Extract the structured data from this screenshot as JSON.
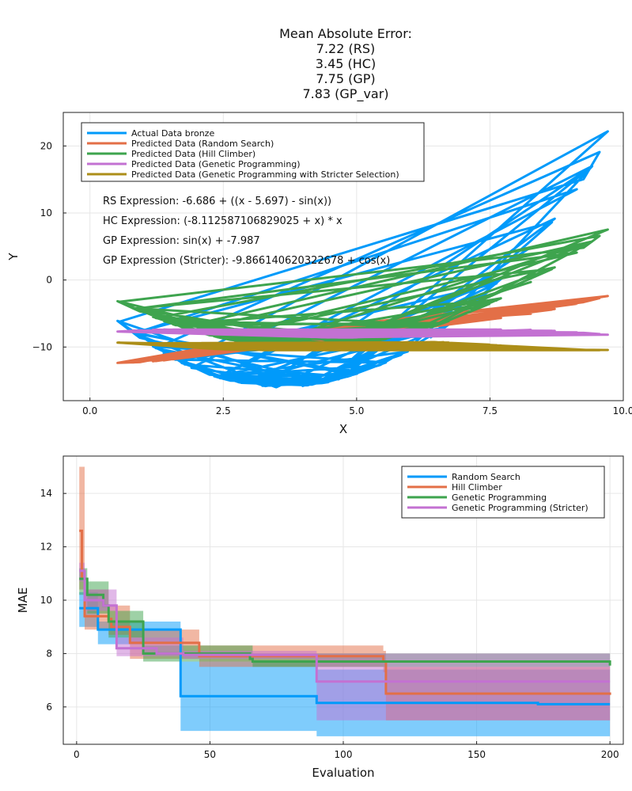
{
  "chart_data": [
    {
      "type": "line",
      "title_lines": [
        "Mean Absolute Error:",
        "7.22 (RS)",
        "3.45 (HC)",
        "7.75 (GP)",
        "7.83 (GP_var)"
      ],
      "xlabel": "X",
      "ylabel": "Y",
      "xlim": [
        -0.5,
        10.0
      ],
      "ylim": [
        -18,
        25
      ],
      "xticks": [
        0.0,
        2.5,
        5.0,
        7.5,
        10.0
      ],
      "xtick_labels": [
        "0.0",
        "2.5",
        "5.0",
        "7.5",
        "10.0"
      ],
      "yticks": [
        -10,
        0,
        10,
        20
      ],
      "ytick_labels": [
        "−10",
        "0",
        "10",
        "20"
      ],
      "grid": true,
      "legend_position": "top-left",
      "series": [
        {
          "name": "Actual Data bronze",
          "color": "#009AFA"
        },
        {
          "name": "Predicted Data (Random Search)",
          "color": "#E36F47"
        },
        {
          "name": "Predicted Data (Hill Climber)",
          "color": "#3EA44E"
        },
        {
          "name": "Predicted Data (Genetic Programming)",
          "color": "#C371D2"
        },
        {
          "name": "Predicted Data (Genetic Programming with Stricter Selection)",
          "color": "#AC8E18"
        }
      ],
      "annotations": [
        "RS Expression: -6.686 + ((x - 5.697) - sin(x))",
        "HC Expression: (-8.112587106829025 + x) * x",
        "GP Expression: sin(x) + -7.987",
        "GP Expression (Stricter): -9.866140620322678 + cos(x)"
      ],
      "x_samples": [
        0.0,
        0.5,
        1.0,
        1.5,
        2.0,
        2.5,
        3.0,
        3.5,
        4.0,
        4.5,
        5.0,
        5.5,
        6.0,
        6.5,
        7.0,
        7.5,
        8.0,
        8.5,
        9.0,
        9.5,
        9.85
      ],
      "actual_y": [
        -3.0,
        -6.0,
        -9.0,
        -11.5,
        -13.5,
        -14.8,
        -15.6,
        -16.0,
        -15.8,
        -15.2,
        -14.0,
        -12.5,
        -10.5,
        -8.0,
        -5.0,
        -1.5,
        2.5,
        7.0,
        12.0,
        18.0,
        25.0
      ]
    },
    {
      "type": "line",
      "xlabel": "Evaluation",
      "ylabel": "MAE",
      "xlim": [
        -5,
        205
      ],
      "ylim": [
        4.6,
        15.4
      ],
      "xticks": [
        0,
        50,
        100,
        150,
        200
      ],
      "xtick_labels": [
        "0",
        "50",
        "100",
        "150",
        "200"
      ],
      "yticks": [
        6,
        8,
        10,
        12,
        14
      ],
      "ytick_labels": [
        "6",
        "8",
        "10",
        "12",
        "14"
      ],
      "grid": true,
      "legend_position": "top-right",
      "series": [
        {
          "name": "Random Search",
          "color": "#009AFA",
          "steps": [
            [
              1,
              9.7
            ],
            [
              5,
              9.7
            ],
            [
              8,
              8.9
            ],
            [
              38,
              8.9
            ],
            [
              39,
              6.4
            ],
            [
              89,
              6.4
            ],
            [
              90,
              6.15
            ],
            [
              172,
              6.15
            ],
            [
              173,
              6.1
            ],
            [
              200,
              6.1
            ]
          ],
          "upper": [
            [
              1,
              10.3
            ],
            [
              8,
              9.2
            ],
            [
              38,
              9.2
            ],
            [
              39,
              7.7
            ],
            [
              89,
              7.7
            ],
            [
              90,
              7.4
            ],
            [
              200,
              7.3
            ]
          ],
          "lower": [
            [
              1,
              9.0
            ],
            [
              8,
              8.35
            ],
            [
              38,
              8.35
            ],
            [
              39,
              5.1
            ],
            [
              89,
              5.1
            ],
            [
              90,
              4.9
            ],
            [
              200,
              4.9
            ]
          ]
        },
        {
          "name": "Hill Climber",
          "color": "#E36F47",
          "steps": [
            [
              1,
              12.6
            ],
            [
              2,
              10.8
            ],
            [
              3,
              9.4
            ],
            [
              12,
              9.3
            ],
            [
              13,
              9.0
            ],
            [
              20,
              8.4
            ],
            [
              45,
              8.4
            ],
            [
              46,
              7.9
            ],
            [
              115,
              7.7
            ],
            [
              116,
              6.5
            ],
            [
              200,
              6.45
            ]
          ],
          "upper": [
            [
              1,
              15.0
            ],
            [
              3,
              10.4
            ],
            [
              12,
              9.8
            ],
            [
              20,
              8.9
            ],
            [
              45,
              8.9
            ],
            [
              46,
              8.3
            ],
            [
              115,
              8.1
            ],
            [
              116,
              7.5
            ],
            [
              200,
              7.4
            ]
          ],
          "lower": [
            [
              1,
              10.4
            ],
            [
              3,
              8.9
            ],
            [
              12,
              8.7
            ],
            [
              20,
              7.8
            ],
            [
              45,
              7.8
            ],
            [
              46,
              7.5
            ],
            [
              115,
              7.3
            ],
            [
              116,
              5.5
            ],
            [
              200,
              5.5
            ]
          ]
        },
        {
          "name": "Genetic Programming",
          "color": "#3EA44E",
          "steps": [
            [
              1,
              10.8
            ],
            [
              4,
              10.2
            ],
            [
              10,
              9.8
            ],
            [
              12,
              9.2
            ],
            [
              24,
              9.2
            ],
            [
              25,
              8.0
            ],
            [
              65,
              7.8
            ],
            [
              66,
              7.7
            ],
            [
              200,
              7.55
            ]
          ],
          "upper": [
            [
              1,
              11.2
            ],
            [
              4,
              10.7
            ],
            [
              12,
              9.6
            ],
            [
              24,
              9.6
            ],
            [
              25,
              8.3
            ],
            [
              66,
              8.0
            ],
            [
              200,
              7.85
            ]
          ],
          "lower": [
            [
              1,
              10.2
            ],
            [
              4,
              9.5
            ],
            [
              12,
              8.6
            ],
            [
              24,
              8.6
            ],
            [
              25,
              7.7
            ],
            [
              66,
              7.5
            ],
            [
              200,
              7.3
            ]
          ]
        },
        {
          "name": "Genetic Programming (Stricter)",
          "color": "#C371D2",
          "steps": [
            [
              1,
              11.1
            ],
            [
              3,
              10.0
            ],
            [
              10,
              9.8
            ],
            [
              15,
              8.2
            ],
            [
              30,
              8.0
            ],
            [
              40,
              7.95
            ],
            [
              89,
              7.95
            ],
            [
              90,
              6.95
            ],
            [
              200,
              6.95
            ]
          ],
          "upper": [
            [
              1,
              11.4
            ],
            [
              3,
              10.4
            ],
            [
              15,
              8.6
            ],
            [
              40,
              8.1
            ],
            [
              89,
              8.1
            ],
            [
              90,
              8.0
            ],
            [
              200,
              7.95
            ]
          ],
          "lower": [
            [
              1,
              10.7
            ],
            [
              3,
              9.6
            ],
            [
              15,
              7.9
            ],
            [
              40,
              7.8
            ],
            [
              89,
              7.8
            ],
            [
              90,
              5.5
            ],
            [
              200,
              5.5
            ]
          ]
        }
      ]
    }
  ]
}
